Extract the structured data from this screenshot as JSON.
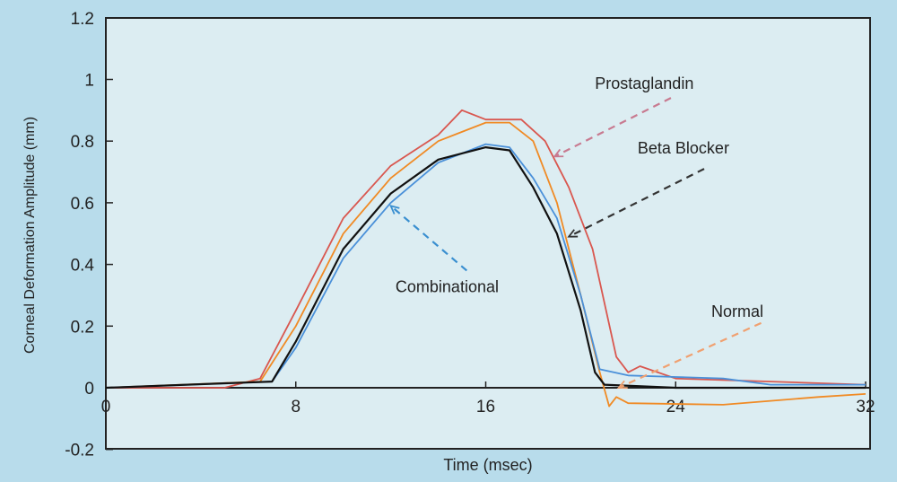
{
  "chart_data": {
    "type": "line",
    "title": "",
    "xlabel": "Time (msec)",
    "ylabel": "Corneal Deformation Amplitude (mm)",
    "xlim": [
      0,
      32
    ],
    "ylim": [
      -0.2,
      1.2
    ],
    "xticks": [
      "0",
      "8",
      "16",
      "24",
      "32"
    ],
    "yticks": [
      "-0.2",
      "0",
      "0.2",
      "0.4",
      "0.6",
      "0.8",
      "1",
      "1.2"
    ],
    "series": [
      {
        "name": "Prostaglandin",
        "color": "#d9574f",
        "x": [
          0,
          5,
          6.5,
          8,
          10,
          12,
          14,
          15,
          16,
          17.5,
          18.5,
          19.5,
          20.5,
          21.5,
          22,
          22.5,
          24,
          28,
          32
        ],
        "y": [
          0,
          0,
          0.03,
          0.25,
          0.55,
          0.72,
          0.82,
          0.9,
          0.87,
          0.87,
          0.8,
          0.65,
          0.45,
          0.1,
          0.05,
          0.07,
          0.03,
          0.02,
          0.01
        ]
      },
      {
        "name": "Normal",
        "color": "#f08a24",
        "x": [
          0,
          6.5,
          8,
          10,
          12,
          14,
          16,
          17,
          18,
          19,
          20,
          20.8,
          21.2,
          21.5,
          22,
          26,
          30,
          32
        ],
        "y": [
          0,
          0.02,
          0.2,
          0.5,
          0.68,
          0.8,
          0.86,
          0.86,
          0.8,
          0.6,
          0.3,
          0.05,
          -0.06,
          -0.03,
          -0.05,
          -0.055,
          -0.03,
          -0.02
        ]
      },
      {
        "name": "Combinational",
        "color": "#4a90d9",
        "x": [
          0,
          7,
          8,
          10,
          12,
          14,
          16,
          17,
          18,
          19,
          20,
          20.8,
          22,
          24,
          26,
          28,
          32
        ],
        "y": [
          0,
          0.02,
          0.13,
          0.42,
          0.6,
          0.73,
          0.79,
          0.78,
          0.68,
          0.55,
          0.3,
          0.06,
          0.04,
          0.035,
          0.03,
          0.01,
          0.01
        ]
      },
      {
        "name": "Beta Blocker",
        "color": "#111111",
        "x": [
          0,
          7,
          8,
          10,
          12,
          14,
          16,
          17,
          18,
          19,
          20,
          20.6,
          21,
          24,
          32
        ],
        "y": [
          0,
          0.02,
          0.15,
          0.45,
          0.63,
          0.74,
          0.78,
          0.77,
          0.65,
          0.5,
          0.25,
          0.05,
          0.01,
          0,
          0
        ]
      }
    ],
    "annotations": [
      {
        "text": "Prostaglandin",
        "color": "#c87a90",
        "tx": 20.6,
        "ty": 0.97,
        "from": [
          23.8,
          0.94
        ],
        "to": [
          18.9,
          0.75
        ]
      },
      {
        "text": "Beta Blocker",
        "color": "#333333",
        "tx": 22.4,
        "ty": 0.76,
        "from": [
          25.2,
          0.71
        ],
        "to": [
          19.5,
          0.49
        ]
      },
      {
        "text": "Combinational",
        "color": "#3a8fd0",
        "tx": 12.2,
        "ty": 0.31,
        "from": [
          15.2,
          0.38
        ],
        "to": [
          12,
          0.59
        ]
      },
      {
        "text": "Normal",
        "color": "#f0a070",
        "tx": 25.5,
        "ty": 0.23,
        "from": [
          27.6,
          0.21
        ],
        "to": [
          21.6,
          0
        ]
      }
    ]
  }
}
